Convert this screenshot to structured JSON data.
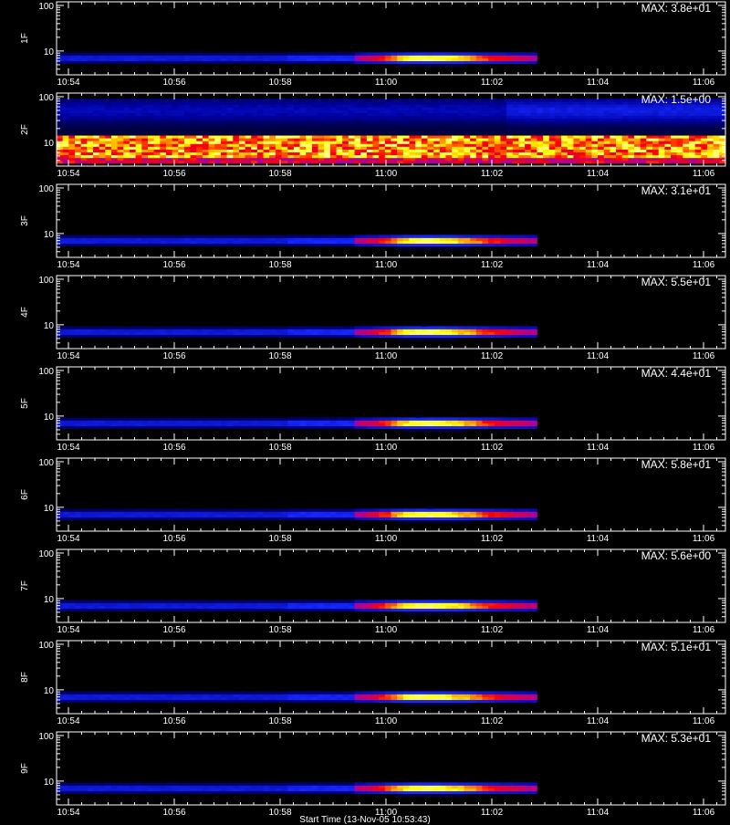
{
  "chart_data": {
    "type": "heatmap",
    "x_tick_labels": [
      "10:54",
      "10:56",
      "10:58",
      "11:00",
      "11:02",
      "11:04",
      "11:06"
    ],
    "y_tick_labels": [
      "10",
      "100"
    ],
    "y_scale": "log",
    "ylim": [
      3,
      120
    ],
    "x_range_minutes": [
      0,
      12.6
    ],
    "colormap": [
      "#000000",
      "#0000a0",
      "#1428ff",
      "#a000b0",
      "#ff0000",
      "#ffff00",
      "#ffffff"
    ],
    "panels": [
      {
        "detector": "1F",
        "max_label": "MAX: 3.8e+01",
        "max": 38,
        "pattern": "burst"
      },
      {
        "detector": "2F",
        "max_label": "MAX: 1.5e+00",
        "max": 1.5,
        "pattern": "background"
      },
      {
        "detector": "3F",
        "max_label": "MAX: 3.1e+01",
        "max": 31,
        "pattern": "burst"
      },
      {
        "detector": "4F",
        "max_label": "MAX: 5.5e+01",
        "max": 55,
        "pattern": "burst"
      },
      {
        "detector": "5F",
        "max_label": "MAX: 4.4e+01",
        "max": 44,
        "pattern": "burst"
      },
      {
        "detector": "6F",
        "max_label": "MAX: 5.8e+01",
        "max": 58,
        "pattern": "burst"
      },
      {
        "detector": "7F",
        "max_label": "MAX: 5.6e+00",
        "max": 5.6,
        "pattern": "burst"
      },
      {
        "detector": "8F",
        "max_label": "MAX: 5.1e+01",
        "max": 51,
        "pattern": "burst"
      },
      {
        "detector": "9F",
        "max_label": "MAX: 5.3e+01",
        "max": 53,
        "pattern": "burst"
      }
    ],
    "burst": {
      "start_min": 5.6,
      "peak_min": 6.9,
      "end_min": 9.1,
      "energy_peak": 7
    },
    "footer_label": "Start Time (13-Nov-05 10:53:43)"
  }
}
